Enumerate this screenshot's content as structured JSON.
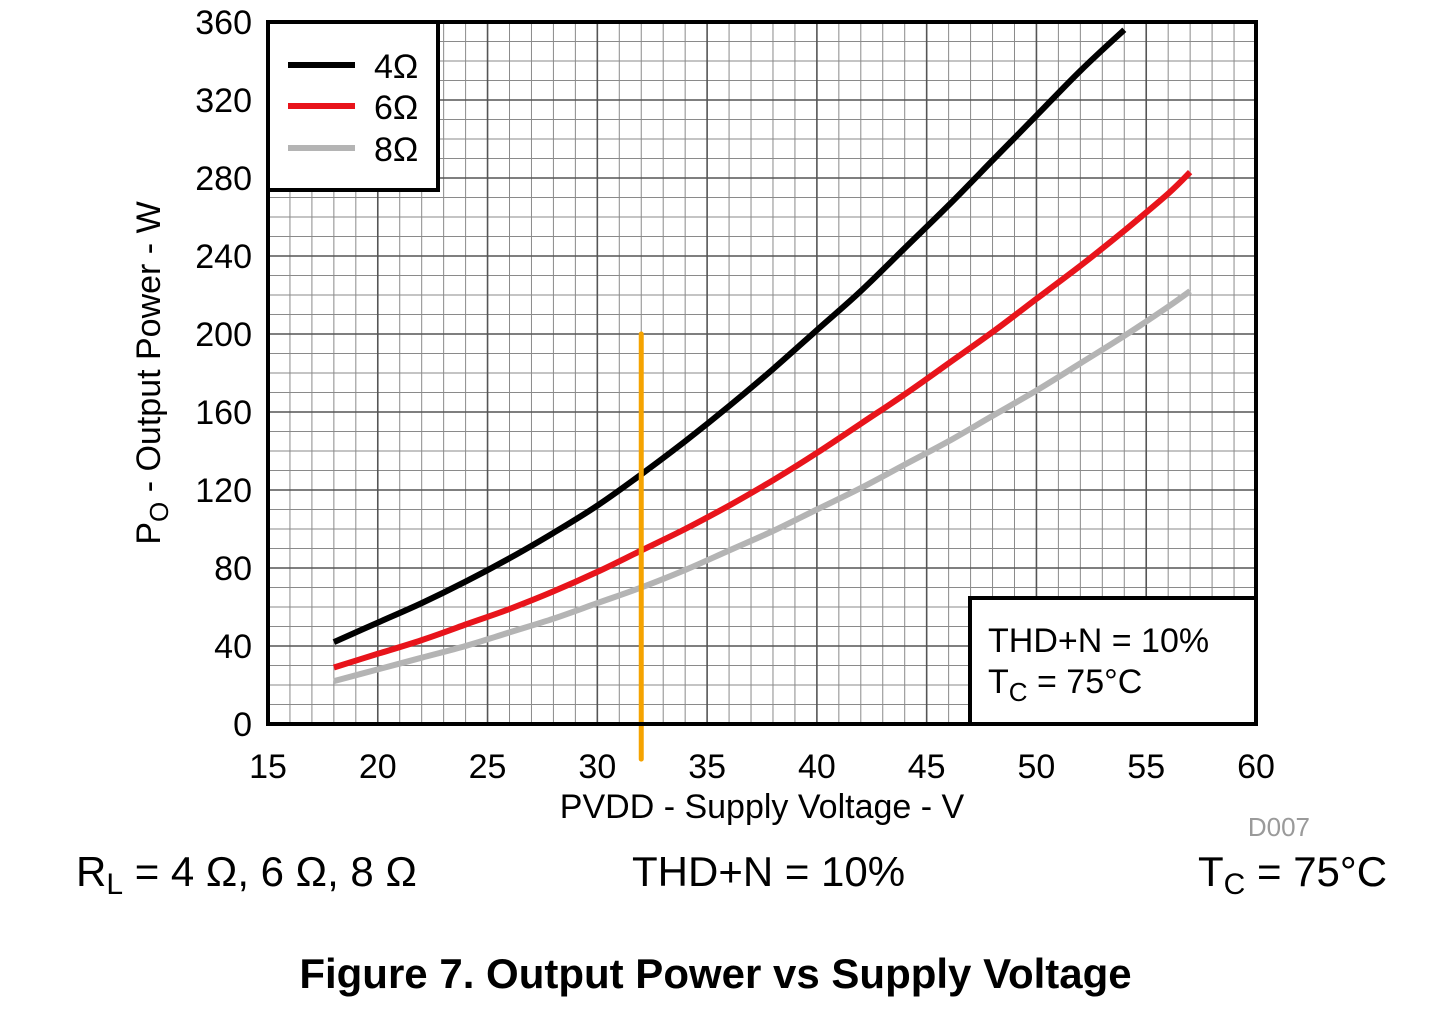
{
  "chart_data": {
    "type": "line",
    "title": "",
    "xlabel": "PVDD - Supply Voltage - V",
    "ylabel_main": "P",
    "ylabel_sub": "O",
    "ylabel_rest": " - Output Power - W",
    "xlim": [
      15,
      60
    ],
    "ylim": [
      0,
      360
    ],
    "xticks": [
      15,
      20,
      25,
      30,
      35,
      40,
      45,
      50,
      55,
      60
    ],
    "yticks": [
      0,
      40,
      80,
      120,
      160,
      200,
      240,
      280,
      320,
      360
    ],
    "x_minor_step": 1,
    "y_minor_step": 10,
    "grid": true,
    "legend_position": "top-left",
    "series": [
      {
        "name": "4Ω",
        "color": "#000000",
        "x": [
          18,
          20,
          22,
          24,
          26,
          28,
          30,
          32,
          34,
          36,
          38,
          40,
          42,
          44,
          46,
          48,
          50,
          52,
          54
        ],
        "y": [
          42,
          52,
          62,
          73,
          85,
          98,
          112,
          128,
          145,
          163,
          182,
          202,
          222,
          244,
          266,
          289,
          312,
          335,
          356
        ]
      },
      {
        "name": "6Ω",
        "color": "#e8141b",
        "x": [
          18,
          20,
          22,
          24,
          26,
          28,
          30,
          32,
          34,
          36,
          38,
          40,
          42,
          44,
          46,
          48,
          50,
          52,
          54,
          56,
          57
        ],
        "y": [
          29,
          36,
          43,
          51,
          59,
          68,
          78,
          89,
          100,
          112,
          125,
          139,
          154,
          169,
          185,
          201,
          218,
          235,
          253,
          272,
          283
        ]
      },
      {
        "name": "8Ω",
        "color": "#b4b4b4",
        "x": [
          18,
          20,
          22,
          24,
          26,
          28,
          30,
          32,
          34,
          36,
          38,
          40,
          42,
          44,
          46,
          48,
          50,
          52,
          54,
          56,
          57
        ],
        "y": [
          22,
          28,
          34,
          40,
          47,
          54,
          62,
          70,
          79,
          89,
          99,
          110,
          121,
          133,
          145,
          158,
          171,
          185,
          199,
          214,
          222
        ]
      }
    ],
    "marker_line": {
      "x": 32,
      "y_top": 200,
      "y_bottom": -18,
      "color": "#f5a300"
    },
    "annotation": {
      "line1": "THD+N = 10%",
      "line2_main": "T",
      "line2_sub": "C",
      "line2_rest": " = 75°C"
    },
    "figure_id": "D007"
  },
  "conditions": {
    "rl_main": "R",
    "rl_sub": "L",
    "rl_rest": " = 4 Ω, 6 Ω, 8 Ω",
    "thd": "THD+N = 10%",
    "tc_main": "T",
    "tc_sub": "C",
    "tc_rest": " = 75°C"
  },
  "caption": "Figure 7. Output Power vs Supply Voltage"
}
